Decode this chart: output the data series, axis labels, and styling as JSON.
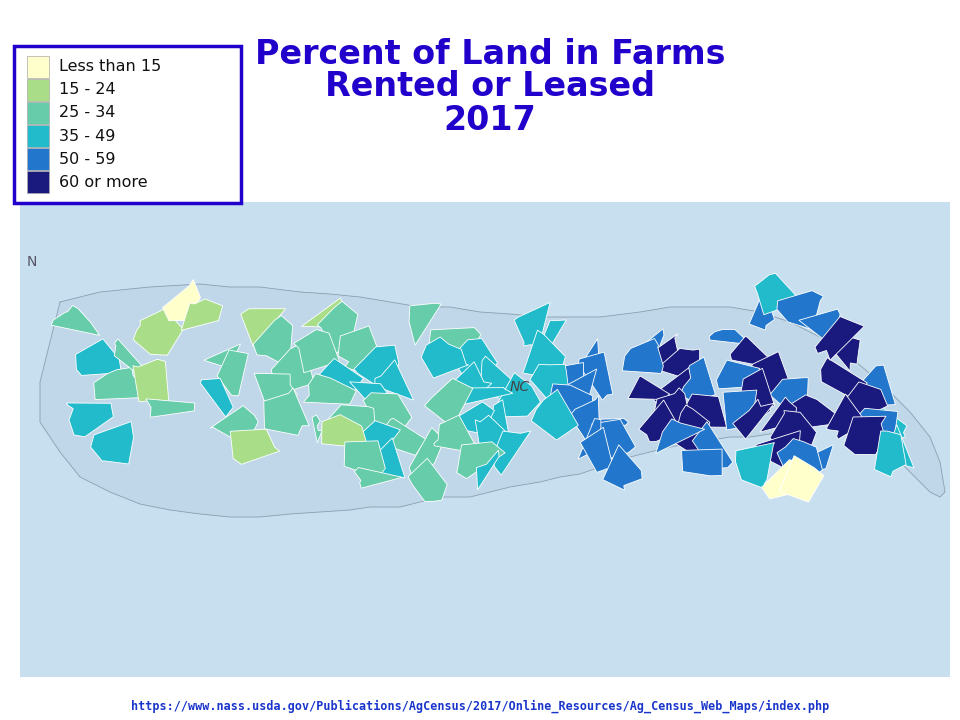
{
  "title_line1": "Percent of Land in Farms",
  "title_line2": "Rented or Leased",
  "title_line3": "2017",
  "title_color": "#2200CC",
  "title_fontsize": 24,
  "header_bg": "#CC0000",
  "header_text_color": "#FFFFFF",
  "footer_url": "https://www.nass.usda.gov/Publications/AgCensus/2017/Online_Resources/Ag_Census_Web_Maps/index.php",
  "footer_color": "#1A35CC",
  "legend_labels": [
    "Less than 15",
    "15 - 24",
    "25 - 34",
    "35 - 49",
    "50 - 59",
    "60 or more"
  ],
  "legend_colors": [
    "#FFFFCC",
    "#AADD88",
    "#66CCAA",
    "#22BBCC",
    "#2277CC",
    "#1A1A7E"
  ],
  "legend_border_color": "#2200CC",
  "legend_bg": "#FFFFFF",
  "nc_label": "NC",
  "map_bg_color": "#C8DFF0",
  "fig_bg": "#FFFFFF",
  "fig_width": 9.6,
  "fig_height": 7.2,
  "fig_dpi": 100
}
